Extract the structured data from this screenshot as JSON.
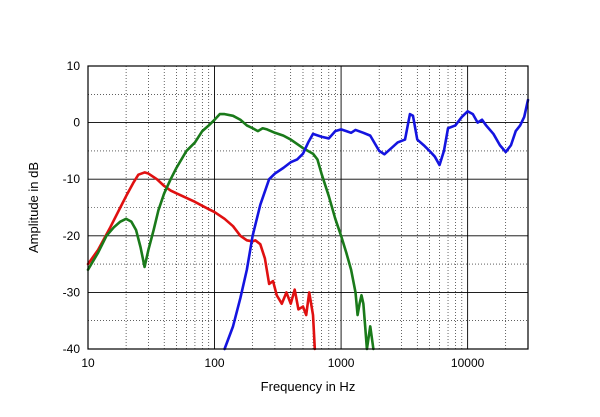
{
  "chart_data": {
    "type": "line",
    "title": "",
    "xlabel": "Frequency in Hz",
    "ylabel": "Amplitude in dB",
    "x_scale": "log",
    "xlim": [
      10,
      30000
    ],
    "ylim": [
      -40,
      10
    ],
    "grid": true,
    "x_tick_labels": [
      {
        "value": 10,
        "label": "10"
      },
      {
        "value": 100,
        "label": "100"
      },
      {
        "value": 1000,
        "label": "1000"
      },
      {
        "value": 10000,
        "label": "10000"
      }
    ],
    "y_tick_labels": [
      {
        "value": 10,
        "label": "10"
      },
      {
        "value": 0,
        "label": "0"
      },
      {
        "value": -10,
        "label": "-10"
      },
      {
        "value": -20,
        "label": "-20"
      },
      {
        "value": -30,
        "label": "-30"
      },
      {
        "value": -40,
        "label": "-40"
      }
    ],
    "series": [
      {
        "color": "#e01010",
        "points": [
          [
            10,
            -25
          ],
          [
            12,
            -22.5
          ],
          [
            15,
            -18.5
          ],
          [
            18,
            -15
          ],
          [
            20,
            -13
          ],
          [
            23,
            -10.5
          ],
          [
            25,
            -9.2
          ],
          [
            28,
            -8.8
          ],
          [
            30,
            -9
          ],
          [
            35,
            -10
          ],
          [
            40,
            -11.2
          ],
          [
            45,
            -12
          ],
          [
            50,
            -12.5
          ],
          [
            60,
            -13.3
          ],
          [
            70,
            -14
          ],
          [
            80,
            -14.7
          ],
          [
            90,
            -15.3
          ],
          [
            100,
            -15.8
          ],
          [
            120,
            -17
          ],
          [
            140,
            -18.3
          ],
          [
            160,
            -20
          ],
          [
            180,
            -20.8
          ],
          [
            200,
            -21
          ],
          [
            210,
            -20.8
          ],
          [
            230,
            -21.5
          ],
          [
            250,
            -24
          ],
          [
            270,
            -28.5
          ],
          [
            290,
            -28
          ],
          [
            310,
            -30.5
          ],
          [
            340,
            -32
          ],
          [
            370,
            -30
          ],
          [
            400,
            -32
          ],
          [
            430,
            -29.5
          ],
          [
            460,
            -33
          ],
          [
            500,
            -32.5
          ],
          [
            530,
            -34
          ],
          [
            560,
            -30
          ],
          [
            600,
            -34
          ],
          [
            620,
            -40
          ]
        ]
      },
      {
        "color": "#1a7a1a",
        "points": [
          [
            10,
            -26
          ],
          [
            12,
            -23
          ],
          [
            14,
            -20
          ],
          [
            16,
            -18.5
          ],
          [
            18,
            -17.5
          ],
          [
            20,
            -17
          ],
          [
            22,
            -17.5
          ],
          [
            24,
            -19
          ],
          [
            26,
            -22
          ],
          [
            28,
            -25.5
          ],
          [
            30,
            -22.5
          ],
          [
            33,
            -19
          ],
          [
            36,
            -15.5
          ],
          [
            40,
            -12.5
          ],
          [
            45,
            -10
          ],
          [
            50,
            -8
          ],
          [
            60,
            -5
          ],
          [
            70,
            -3.5
          ],
          [
            80,
            -1.5
          ],
          [
            90,
            -0.5
          ],
          [
            100,
            0.5
          ],
          [
            110,
            1.5
          ],
          [
            120,
            1.5
          ],
          [
            140,
            1.2
          ],
          [
            160,
            0.5
          ],
          [
            180,
            -0.5
          ],
          [
            200,
            -1
          ],
          [
            220,
            -1.5
          ],
          [
            240,
            -1
          ],
          [
            260,
            -1.2
          ],
          [
            300,
            -1.8
          ],
          [
            350,
            -2.3
          ],
          [
            400,
            -3
          ],
          [
            500,
            -4.5
          ],
          [
            600,
            -5.5
          ],
          [
            650,
            -6.5
          ],
          [
            700,
            -9
          ],
          [
            800,
            -13
          ],
          [
            900,
            -17
          ],
          [
            1000,
            -20
          ],
          [
            1100,
            -23
          ],
          [
            1200,
            -26
          ],
          [
            1300,
            -30
          ],
          [
            1350,
            -34
          ],
          [
            1400,
            -32
          ],
          [
            1450,
            -30.5
          ],
          [
            1500,
            -32
          ],
          [
            1550,
            -36
          ],
          [
            1600,
            -40
          ],
          [
            1700,
            -36
          ],
          [
            1800,
            -40
          ]
        ]
      },
      {
        "color": "#1414e0",
        "points": [
          [
            120,
            -40
          ],
          [
            140,
            -36
          ],
          [
            160,
            -31
          ],
          [
            180,
            -26
          ],
          [
            200,
            -20
          ],
          [
            230,
            -14.5
          ],
          [
            270,
            -10
          ],
          [
            300,
            -9
          ],
          [
            350,
            -8
          ],
          [
            400,
            -7
          ],
          [
            450,
            -6.5
          ],
          [
            500,
            -5.5
          ],
          [
            550,
            -3.5
          ],
          [
            600,
            -2
          ],
          [
            700,
            -2.5
          ],
          [
            800,
            -2.8
          ],
          [
            900,
            -1.5
          ],
          [
            1000,
            -1.2
          ],
          [
            1100,
            -1.5
          ],
          [
            1200,
            -1.8
          ],
          [
            1300,
            -1.3
          ],
          [
            1500,
            -1.8
          ],
          [
            1700,
            -2.3
          ],
          [
            2000,
            -5
          ],
          [
            2200,
            -5.6
          ],
          [
            2500,
            -4.5
          ],
          [
            2800,
            -3.5
          ],
          [
            3200,
            -3
          ],
          [
            3500,
            1.5
          ],
          [
            3700,
            1.2
          ],
          [
            4000,
            -3
          ],
          [
            4500,
            -4
          ],
          [
            5000,
            -5
          ],
          [
            5500,
            -6
          ],
          [
            6000,
            -7.5
          ],
          [
            6500,
            -5
          ],
          [
            7000,
            -1
          ],
          [
            8000,
            -0.5
          ],
          [
            9000,
            1
          ],
          [
            10000,
            2
          ],
          [
            11000,
            1.5
          ],
          [
            12000,
            0
          ],
          [
            13000,
            0.5
          ],
          [
            14000,
            -0.5
          ],
          [
            16000,
            -2
          ],
          [
            18000,
            -4
          ],
          [
            20000,
            -5.2
          ],
          [
            22000,
            -4
          ],
          [
            24000,
            -1.5
          ],
          [
            26000,
            -0.5
          ],
          [
            28000,
            1
          ],
          [
            30000,
            4
          ]
        ]
      }
    ]
  }
}
